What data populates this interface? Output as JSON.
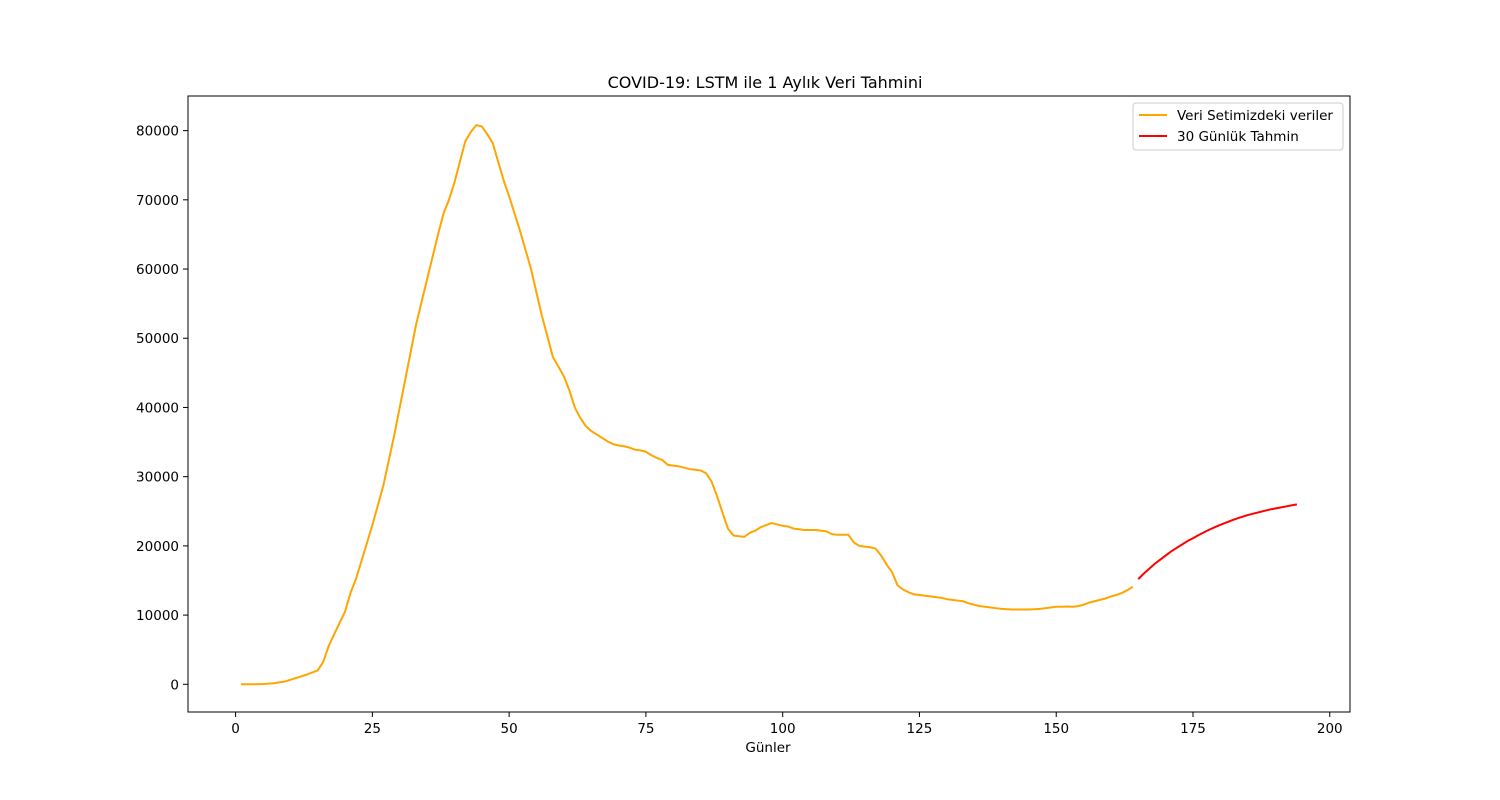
{
  "chart_data": {
    "type": "line",
    "title": "COVID-19: LSTM ile 1 Aylık Veri Tahmini",
    "xlabel": "Günler",
    "ylabel": "",
    "xlim": [
      -8.7,
      203.7
    ],
    "ylim": [
      -4000,
      85000
    ],
    "xticks": [
      0,
      25,
      50,
      75,
      100,
      125,
      150,
      175,
      200
    ],
    "yticks": [
      0,
      10000,
      20000,
      30000,
      40000,
      50000,
      60000,
      70000,
      80000
    ],
    "grid": false,
    "legend_position": "top-right",
    "series": [
      {
        "name": "Veri Setimizdeki veriler",
        "color": "#ffa500",
        "x": [
          1,
          3,
          5,
          7,
          9,
          11,
          13,
          15,
          16,
          17,
          18,
          20,
          21,
          22,
          23,
          25,
          27,
          29,
          31,
          33,
          35,
          37,
          38,
          39,
          40,
          41,
          42,
          43,
          44,
          45,
          46,
          47,
          48,
          49,
          50,
          52,
          54,
          56,
          58,
          60,
          61,
          62,
          63,
          64,
          65,
          66,
          67,
          68,
          69,
          70,
          71,
          72,
          73,
          74,
          75,
          76,
          77,
          78,
          79,
          80,
          81,
          82,
          83,
          84,
          85,
          86,
          87,
          88,
          89,
          90,
          91,
          92,
          93,
          94,
          95,
          96,
          97,
          98,
          99,
          100,
          101,
          102,
          103,
          104,
          105,
          106,
          107,
          108,
          109,
          110,
          111,
          112,
          113,
          114,
          115,
          116,
          117,
          118,
          119,
          120,
          121,
          122,
          123,
          124,
          125,
          126,
          127,
          128,
          129,
          130,
          131,
          132,
          133,
          134,
          135,
          136,
          137,
          138,
          139,
          140,
          141,
          142,
          143,
          144,
          145,
          146,
          147,
          148,
          149,
          150,
          151,
          152,
          153,
          154,
          155,
          156,
          157,
          158,
          159,
          160,
          161,
          162,
          163,
          164
        ],
        "values": [
          0,
          0,
          50,
          150,
          400,
          900,
          1400,
          2000,
          3200,
          5500,
          7200,
          10500,
          13200,
          15200,
          17800,
          23000,
          28700,
          36000,
          44000,
          52000,
          58500,
          65000,
          68000,
          70000,
          72500,
          75500,
          78500,
          79800,
          80800,
          80600,
          79500,
          78200,
          75500,
          72800,
          70500,
          65500,
          60000,
          53200,
          47300,
          44500,
          42500,
          40000,
          38500,
          37300,
          36600,
          36100,
          35600,
          35100,
          34700,
          34500,
          34400,
          34200,
          33900,
          33800,
          33600,
          33100,
          32700,
          32400,
          31700,
          31600,
          31500,
          31300,
          31100,
          31000,
          30900,
          30500,
          29300,
          27200,
          24800,
          22500,
          21500,
          21400,
          21300,
          21900,
          22200,
          22700,
          23000,
          23300,
          23100,
          22900,
          22800,
          22500,
          22400,
          22300,
          22300,
          22300,
          22200,
          22100,
          21700,
          21600,
          21600,
          21600,
          20500,
          20000,
          19900,
          19800,
          19600,
          18600,
          17300,
          16200,
          14300,
          13700,
          13300,
          13000,
          12900,
          12800,
          12700,
          12600,
          12500,
          12300,
          12200,
          12100,
          12000,
          11700,
          11500,
          11300,
          11200,
          11100,
          11000,
          10900,
          10850,
          10800,
          10800,
          10800,
          10800,
          10850,
          10900,
          11000,
          11100,
          11200,
          11200,
          11250,
          11200,
          11300,
          11500,
          11800,
          12000,
          12200,
          12400,
          12700,
          12900,
          13200,
          13600,
          14100
        ]
      },
      {
        "name": "30 Günlük Tahmin",
        "color": "#ff0000",
        "x": [
          165,
          166,
          167,
          168,
          169,
          170,
          171,
          172,
          173,
          174,
          175,
          176,
          177,
          178,
          179,
          180,
          181,
          182,
          183,
          184,
          185,
          186,
          187,
          188,
          189,
          190,
          191,
          192,
          193,
          194
        ],
        "values": [
          15200,
          16000,
          16700,
          17400,
          18000,
          18600,
          19200,
          19700,
          20200,
          20700,
          21100,
          21550,
          21950,
          22350,
          22700,
          23050,
          23350,
          23650,
          23950,
          24200,
          24450,
          24650,
          24850,
          25050,
          25250,
          25400,
          25550,
          25700,
          25850,
          26000
        ]
      }
    ]
  }
}
